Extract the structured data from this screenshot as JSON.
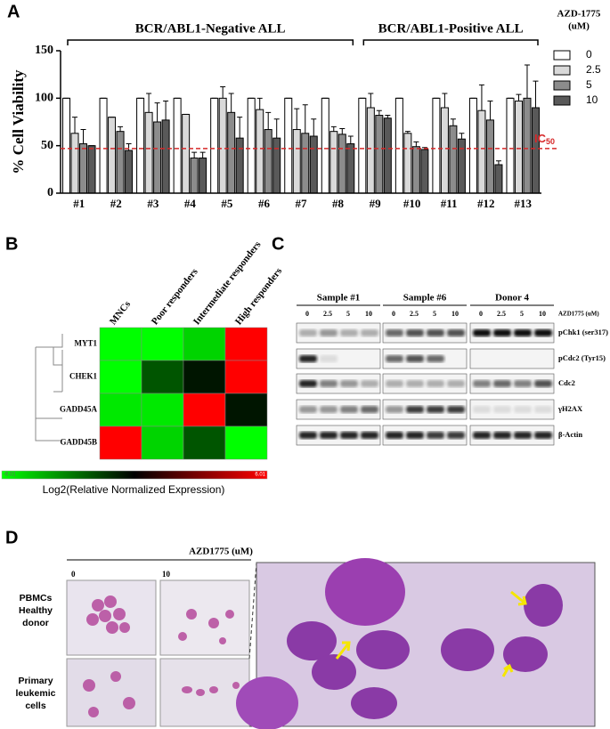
{
  "chart_data": {
    "type": "bar",
    "panel": "A",
    "y_label": "% Cell Viability",
    "categories": [
      "#1",
      "#2",
      "#3",
      "#4",
      "#5",
      "#6",
      "#7",
      "#8",
      "#9",
      "#10",
      "#11",
      "#12",
      "#13"
    ],
    "groups": [
      {
        "label": "BCR/ABL1-Negative ALL",
        "categories": [
          "#1",
          "#2",
          "#3",
          "#4",
          "#5",
          "#6",
          "#7",
          "#8"
        ]
      },
      {
        "label": "BCR/ABL1-Positive ALL",
        "categories": [
          "#9",
          "#10",
          "#11",
          "#12",
          "#13"
        ]
      }
    ],
    "legend_title": [
      "AZD-1775",
      "(uM)"
    ],
    "series": [
      {
        "name": "0",
        "color": "#ffffff",
        "values": [
          100,
          100,
          100,
          100,
          100,
          100,
          100,
          100,
          100,
          100,
          100,
          100,
          100
        ],
        "errors": [
          0,
          0,
          0,
          0,
          0,
          0,
          0,
          0,
          0,
          0,
          0,
          0,
          0
        ]
      },
      {
        "name": "2.5",
        "color": "#d9d9d9",
        "values": [
          63,
          80,
          85,
          83,
          100,
          88,
          67,
          65,
          90,
          63,
          90,
          87,
          97
        ],
        "errors": [
          17,
          0,
          20,
          0,
          12,
          12,
          22,
          5,
          15,
          2,
          15,
          27,
          7
        ]
      },
      {
        "name": "5",
        "color": "#8c8c8c",
        "values": [
          52,
          65,
          75,
          37,
          85,
          67,
          63,
          62,
          82,
          49,
          71,
          77,
          100
        ],
        "errors": [
          15,
          5,
          20,
          6,
          20,
          18,
          30,
          6,
          5,
          5,
          7,
          20,
          35
        ]
      },
      {
        "name": "10",
        "color": "#595959",
        "values": [
          50,
          45,
          77,
          37,
          58,
          58,
          60,
          52,
          79,
          46,
          57,
          30,
          90
        ],
        "errors": [
          0,
          7,
          20,
          6,
          22,
          20,
          18,
          8,
          3,
          2,
          6,
          4,
          28
        ]
      }
    ],
    "ylim": [
      0,
      150
    ],
    "yticks": [
      0,
      50,
      100,
      150
    ],
    "reference_line": {
      "value": 47,
      "label": "IC",
      "label_sub": "50",
      "color": "#d62728"
    }
  },
  "panel_b": {
    "panel": "B",
    "columns": [
      "MNCs",
      "Poor responders",
      "Intermediate responders",
      "High responders"
    ],
    "rows": [
      "MYT1",
      "CHEK1",
      "GADD45A",
      "GADD45B"
    ],
    "values": [
      [
        -6,
        -6,
        -5,
        6
      ],
      [
        -6,
        -2,
        -0.5,
        6
      ],
      [
        -5.5,
        -5.5,
        6,
        -0.5
      ],
      [
        6,
        -5,
        -2,
        -6
      ]
    ],
    "clim": [
      -6.01,
      6.01
    ],
    "colorbar_label": "Log2(Relative Normalized Expression)"
  },
  "panel_c": {
    "panel": "C",
    "groups": [
      "Sample #1",
      "Sample #6",
      "Donor  4"
    ],
    "doses": [
      "0",
      "2.5",
      "5",
      "10"
    ],
    "dose_label": "AZD1775 (uM)",
    "proteins": [
      "pChk1 (ser317)",
      "pCdc2 (Tyr15)",
      "Cdc2",
      "γH2AX",
      "β-Actin"
    ]
  },
  "panel_d": {
    "panel": "D",
    "dose_label": "AZD1775 (uM)",
    "doses": [
      "0",
      "10"
    ],
    "row_labels": [
      [
        "PBMCs",
        "Healthy",
        "donor"
      ],
      [
        "Primary",
        "leukemic",
        "cells"
      ]
    ]
  }
}
